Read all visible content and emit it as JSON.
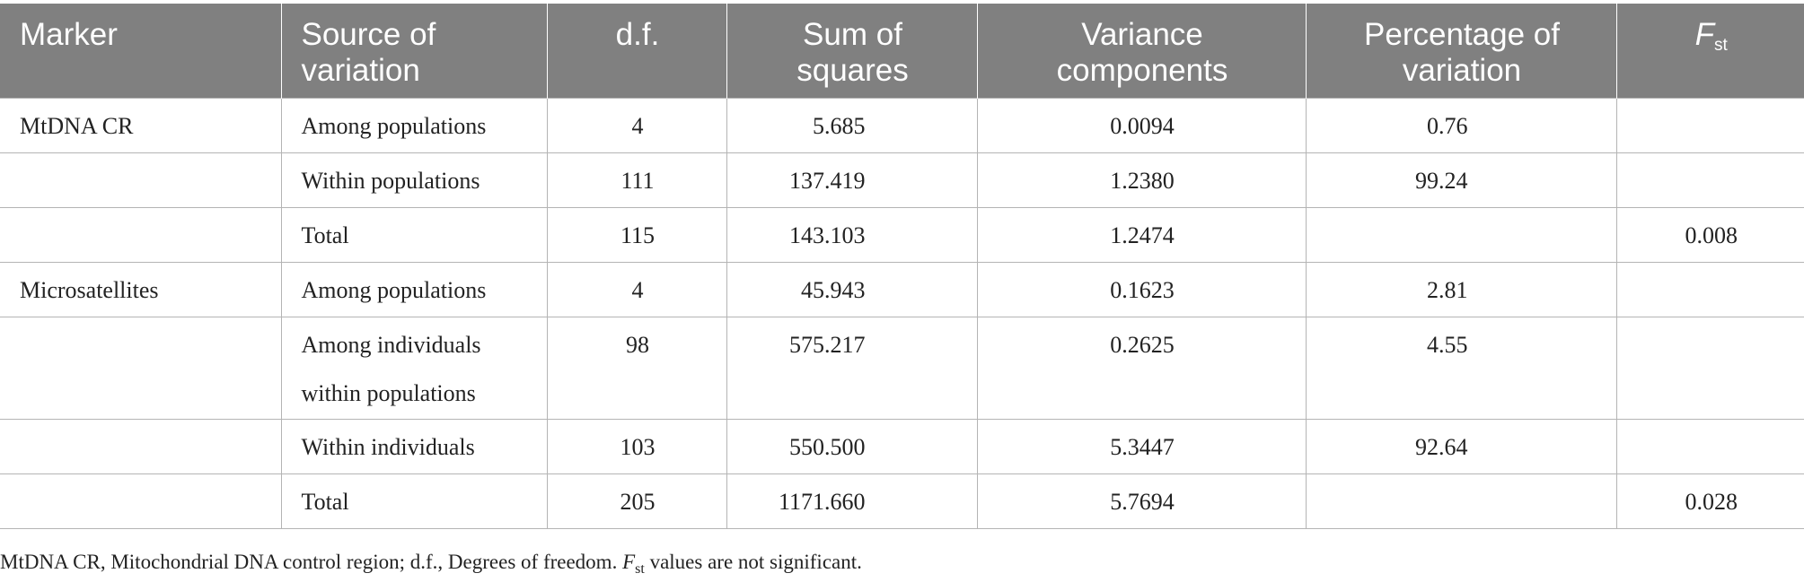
{
  "table": {
    "headers": {
      "marker": "Marker",
      "source": "Source of variation",
      "df": "d.f.",
      "sum_squares": "Sum of squares",
      "variance_components": "Variance components",
      "percentage": "Percentage of variation",
      "fst_main": "F",
      "fst_sub": "st"
    },
    "rows": [
      {
        "marker": "MtDNA CR",
        "source": "Among populations",
        "df": "4",
        "ss": "5.685",
        "vc": "0.0094",
        "pct": "0.76",
        "fst": ""
      },
      {
        "marker": "",
        "source": "Within populations",
        "df": "111",
        "ss": "137.419",
        "vc": "1.2380",
        "pct": "99.24",
        "fst": ""
      },
      {
        "marker": "",
        "source": "Total",
        "df": "115",
        "ss": "143.103",
        "vc": "1.2474",
        "pct": "",
        "fst": "0.008"
      },
      {
        "marker": "Microsatellites",
        "source": "Among populations",
        "df": "4",
        "ss": "45.943",
        "vc": "0.1623",
        "pct": "2.81",
        "fst": ""
      },
      {
        "marker": "",
        "source": "Among individuals within populations",
        "df": "98",
        "ss": "575.217",
        "vc": "0.2625",
        "pct": "4.55",
        "fst": ""
      },
      {
        "marker": "",
        "source": "Within individuals",
        "df": "103",
        "ss": "550.500",
        "vc": "5.3447",
        "pct": "92.64",
        "fst": ""
      },
      {
        "marker": "",
        "source": "Total",
        "df": "205",
        "ss": "1171.660",
        "vc": "5.7694",
        "pct": "",
        "fst": "0.028"
      }
    ]
  },
  "footnote": {
    "text_before": "MtDNA CR, Mitochondrial DNA control region; d.f., Degrees of freedom. ",
    "fst_main": "F",
    "fst_sub": "st",
    "text_after": " values are not significant."
  }
}
